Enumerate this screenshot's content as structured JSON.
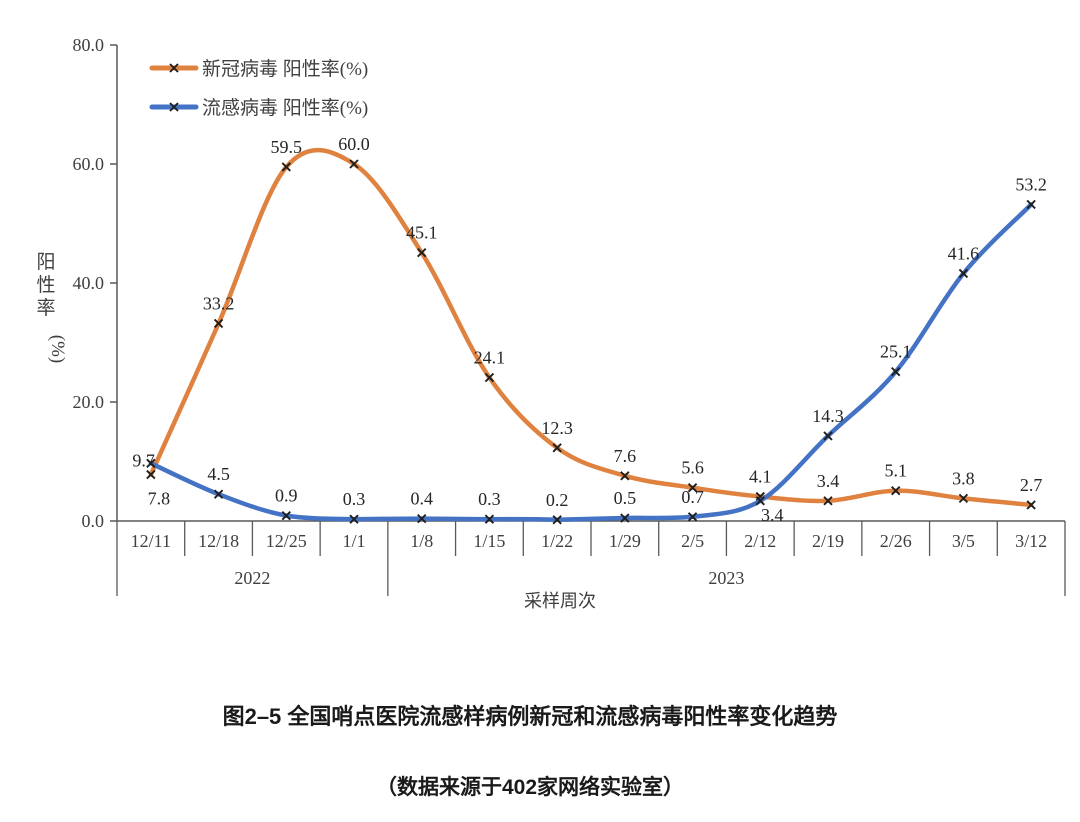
{
  "chart_data": {
    "type": "line",
    "smooth": true,
    "marker": "x",
    "x_categories": [
      "12/11",
      "12/18",
      "12/25",
      "1/1",
      "1/8",
      "1/15",
      "1/22",
      "1/29",
      "2/5",
      "2/12",
      "2/19",
      "2/26",
      "3/5",
      "3/12"
    ],
    "year_groups": [
      {
        "label": "2022",
        "span": 4
      },
      {
        "label": "2023",
        "span": 10
      }
    ],
    "series": [
      {
        "name": "新冠病毒 阳性率(%)",
        "color": "#E0823F",
        "values": [
          7.8,
          33.2,
          59.5,
          60.0,
          45.1,
          24.1,
          12.3,
          7.6,
          5.6,
          4.1,
          3.4,
          5.1,
          3.8,
          2.7
        ],
        "label_overrides": {
          "0": {
            "dx": 8,
            "dy": 30
          }
        }
      },
      {
        "name": "流感病毒 阳性率(%)",
        "color": "#4472C4",
        "values": [
          9.7,
          4.5,
          0.9,
          0.3,
          0.4,
          0.3,
          0.2,
          0.5,
          0.7,
          3.4,
          14.3,
          25.1,
          41.6,
          53.2
        ],
        "label_overrides": {
          "0": {
            "dx": 4,
            "dy": 3,
            "anchor": "end"
          },
          "9": {
            "dx": 12,
            "dy": 20
          }
        }
      }
    ],
    "ylabel": "阳性率(%)",
    "xlabel": "采样周次",
    "ylim": [
      0,
      80
    ],
    "yticks": [
      0,
      20,
      40,
      60,
      80
    ],
    "ytick_format_decimals": 1,
    "legend_position": "top-left",
    "axis_color": "#595959",
    "marker_color": "#1f1f1f",
    "grid": false
  },
  "caption": {
    "title": "图2–5 全国哨点医院流感样病例新冠和流感病毒阳性率变化趋势",
    "source": "（数据来源于402家网络实验室）"
  }
}
